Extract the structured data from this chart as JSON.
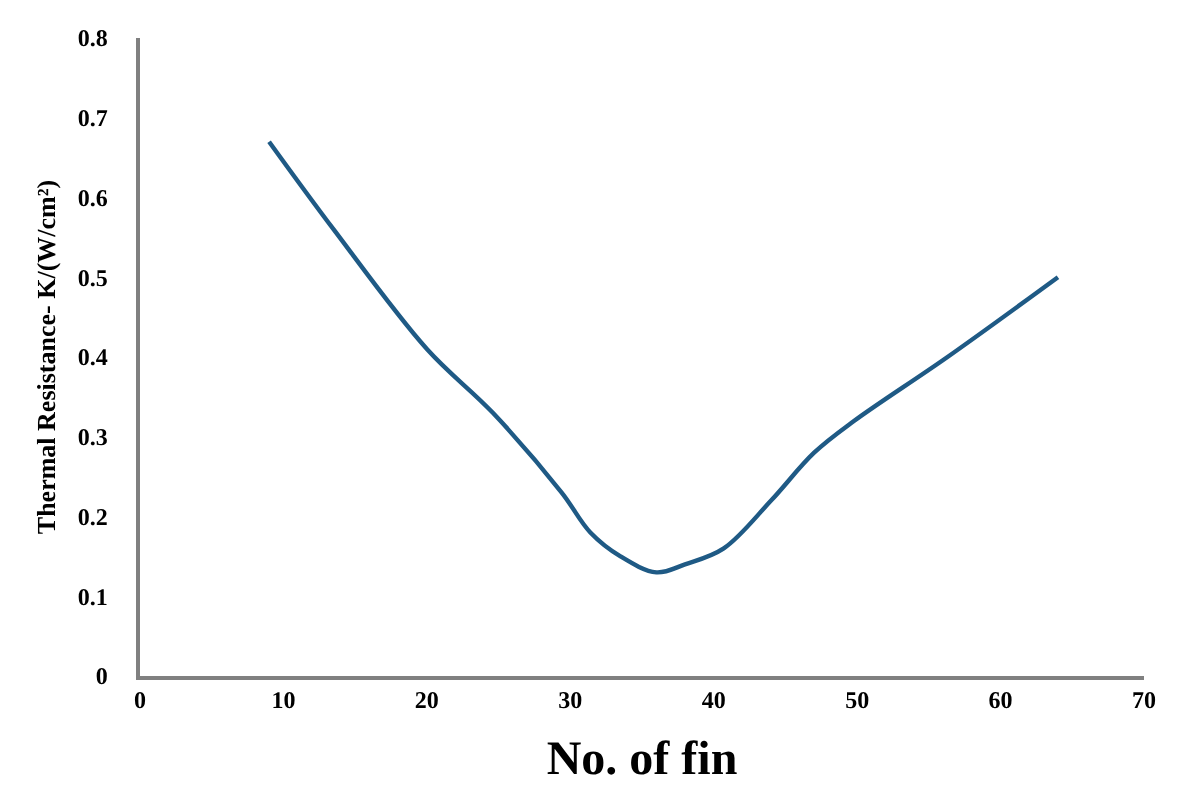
{
  "chart_data": {
    "type": "line",
    "xlabel": "No. of fin",
    "ylabel": "Thermal Resistance- K/(W/cm²)",
    "x": [
      9,
      13.5,
      20,
      24.6,
      29.4,
      31.4,
      33.5,
      36,
      38,
      40.7,
      44,
      47,
      49.8,
      56.3,
      64
    ],
    "series": [
      {
        "color": "#1f5a85",
        "values": [
          0.67,
          0.56,
          0.41,
          0.33,
          0.23,
          0.18,
          0.15,
          0.13,
          0.14,
          0.16,
          0.22,
          0.28,
          0.32,
          0.4,
          0.5
        ]
      }
    ],
    "xlim": [
      0,
      70
    ],
    "xticks": [
      0,
      10,
      20,
      30,
      40,
      50,
      60,
      70
    ],
    "ylim": [
      0,
      0.8
    ],
    "yticks": [
      0,
      0.1,
      0.2,
      0.3,
      0.4,
      0.5,
      0.6,
      0.7,
      0.8
    ],
    "marker": "none",
    "line_style": "solid"
  }
}
